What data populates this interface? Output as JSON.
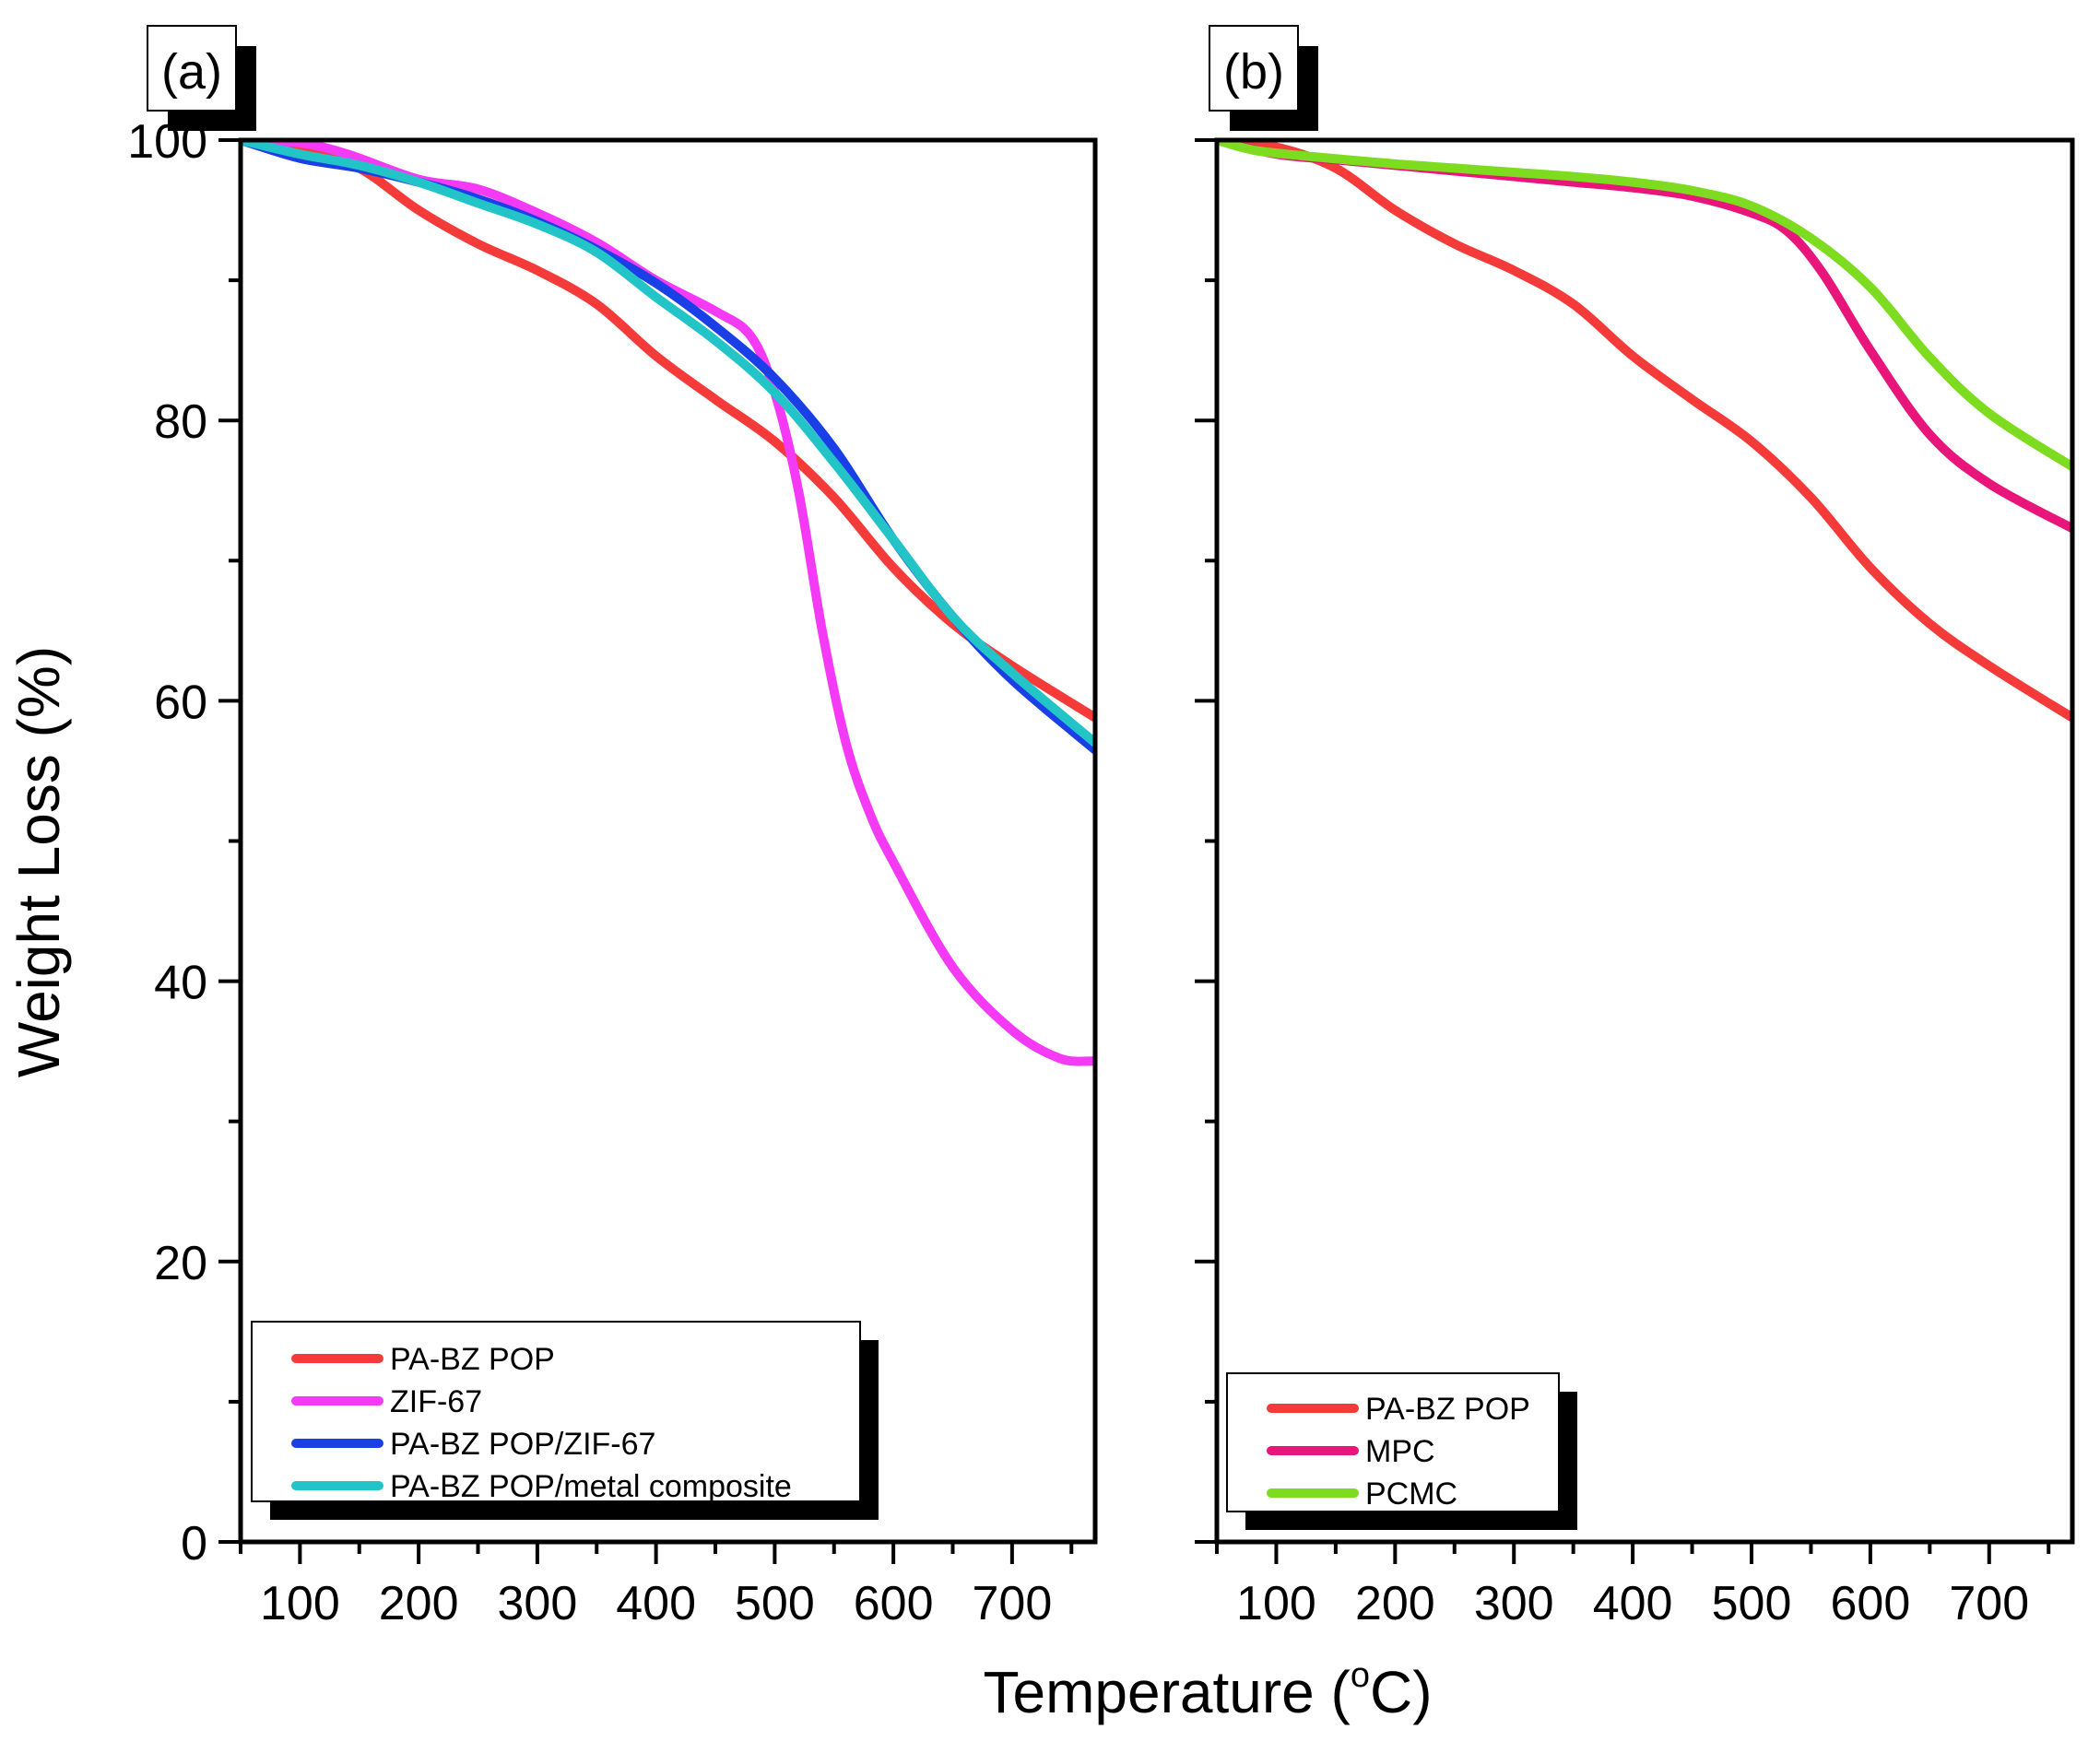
{
  "chart_data": [
    {
      "type": "line",
      "panel_label": "(a)",
      "xlim": [
        50,
        770
      ],
      "ylim": [
        0,
        100
      ],
      "xticks": [
        100,
        200,
        300,
        400,
        500,
        600,
        700
      ],
      "yticks": [
        0,
        20,
        40,
        60,
        80,
        100
      ],
      "grid": false,
      "legend_position": "bottom-left",
      "series": [
        {
          "name": "PA-BZ POP",
          "color": "#f53a3a",
          "x": [
            50,
            100,
            150,
            200,
            250,
            300,
            350,
            400,
            450,
            500,
            550,
            600,
            650,
            700,
            770
          ],
          "y": [
            100.0,
            99.5,
            98.0,
            95.0,
            92.6,
            90.7,
            88.3,
            84.6,
            81.5,
            78.5,
            74.5,
            69.5,
            65.5,
            62.5,
            58.8
          ]
        },
        {
          "name": "ZIF-67",
          "color": "#f53af5",
          "x": [
            50,
            100,
            140,
            200,
            250,
            300,
            350,
            400,
            450,
            480,
            500,
            520,
            540,
            560,
            580,
            600,
            650,
            700,
            740,
            770
          ],
          "y": [
            100.0,
            99.8,
            99.0,
            97.2,
            96.5,
            94.8,
            92.7,
            90.0,
            87.8,
            86.0,
            82.0,
            75.0,
            65.0,
            57.0,
            52.0,
            48.5,
            41.0,
            36.5,
            34.5,
            34.3
          ]
        },
        {
          "name": "PA-BZ POP/ZIF-67",
          "color": "#1a3fe6",
          "x": [
            50,
            100,
            150,
            200,
            250,
            300,
            350,
            400,
            450,
            500,
            550,
            600,
            650,
            700,
            770
          ],
          "y": [
            100.0,
            98.7,
            98.0,
            97.0,
            95.8,
            94.2,
            92.2,
            89.8,
            86.7,
            83.0,
            78.0,
            71.5,
            66.0,
            61.5,
            56.5
          ]
        },
        {
          "name": "PA-BZ POP/metal composite",
          "color": "#22c4c7",
          "x": [
            50,
            100,
            150,
            200,
            250,
            300,
            350,
            400,
            450,
            500,
            550,
            600,
            650,
            700,
            770
          ],
          "y": [
            100.0,
            99.0,
            98.2,
            97.0,
            95.5,
            94.0,
            92.0,
            88.8,
            85.7,
            82.0,
            77.0,
            71.5,
            66.0,
            62.0,
            57.0
          ]
        }
      ]
    },
    {
      "type": "line",
      "panel_label": "(b)",
      "xlim": [
        50,
        770
      ],
      "ylim": [
        0,
        100
      ],
      "xticks": [
        100,
        200,
        300,
        400,
        500,
        600,
        700
      ],
      "yticks": [
        0,
        20,
        40,
        60,
        80,
        100
      ],
      "grid": false,
      "legend_position": "bottom-left",
      "series": [
        {
          "name": "PA-BZ POP",
          "color": "#f53a3a",
          "x": [
            50,
            100,
            150,
            200,
            250,
            300,
            350,
            400,
            450,
            500,
            550,
            600,
            650,
            700,
            770
          ],
          "y": [
            100.0,
            99.5,
            98.0,
            95.0,
            92.6,
            90.7,
            88.3,
            84.6,
            81.5,
            78.5,
            74.5,
            69.5,
            65.5,
            62.5,
            58.8
          ]
        },
        {
          "name": "MPC",
          "color": "#e8157a",
          "x": [
            50,
            100,
            150,
            200,
            250,
            300,
            350,
            400,
            450,
            500,
            530,
            560,
            600,
            650,
            700,
            770
          ],
          "y": [
            100.0,
            99.0,
            98.6,
            98.2,
            97.8,
            97.4,
            97.0,
            96.6,
            96.0,
            94.8,
            93.5,
            90.5,
            85.0,
            79.0,
            75.5,
            72.3
          ]
        },
        {
          "name": "PCMC",
          "color": "#7ddc1f",
          "x": [
            50,
            80,
            120,
            200,
            250,
            300,
            350,
            400,
            450,
            500,
            550,
            600,
            650,
            700,
            770
          ],
          "y": [
            100.0,
            99.3,
            98.9,
            98.3,
            98.0,
            97.7,
            97.4,
            97.0,
            96.4,
            95.3,
            93.0,
            89.5,
            84.5,
            80.5,
            76.7
          ]
        }
      ]
    }
  ],
  "labels": {
    "ylabel": "Weight Loss (%)",
    "xlabel_main": "Temperature (",
    "xlabel_sup": "o",
    "xlabel_end": "C)"
  }
}
